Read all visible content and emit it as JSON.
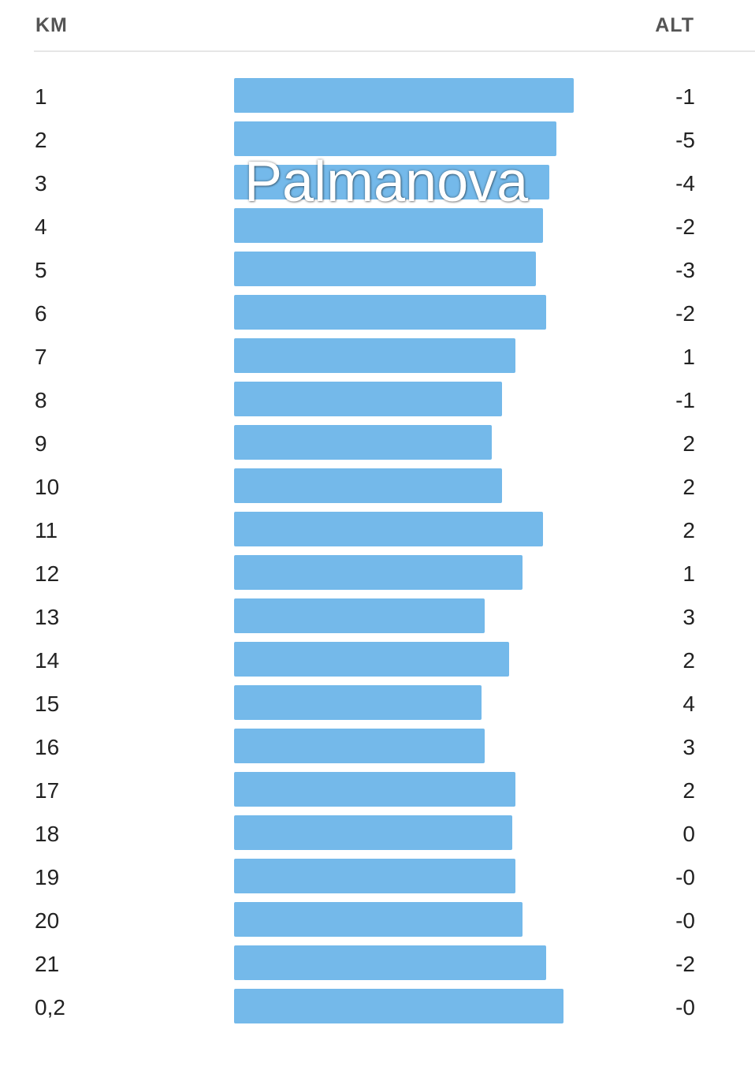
{
  "header": {
    "km_label": "KM",
    "alt_label": "ALT"
  },
  "watermark": "Palmanova",
  "colors": {
    "bar": "#74b9ea",
    "divider": "#e6e6e6",
    "text": "#222222",
    "header_text": "#555555"
  },
  "chart_data": {
    "type": "bar",
    "orientation": "horizontal",
    "categories": [
      "1",
      "2",
      "3",
      "4",
      "5",
      "6",
      "7",
      "8",
      "9",
      "10",
      "11",
      "12",
      "13",
      "14",
      "15",
      "16",
      "17",
      "18",
      "19",
      "20",
      "21",
      "0,2"
    ],
    "values": [
      431,
      409,
      400,
      392,
      383,
      396,
      357,
      340,
      327,
      340,
      392,
      366,
      318,
      349,
      314,
      318,
      357,
      353,
      357,
      366,
      396,
      418
    ],
    "alt": [
      "-1",
      "-5",
      "-4",
      "-2",
      "-3",
      "-2",
      "1",
      "-1",
      "2",
      "2",
      "2",
      "1",
      "3",
      "2",
      "4",
      "3",
      "2",
      "0",
      "-0",
      "-0",
      "-2",
      "-0"
    ],
    "xlim": [
      0,
      431
    ]
  }
}
